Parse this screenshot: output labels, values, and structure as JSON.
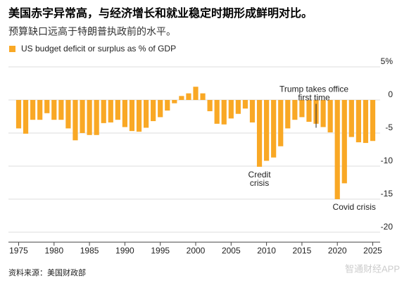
{
  "chart_data": {
    "type": "bar",
    "title": "美国赤字异常高，与经济增长和就业稳定时期形成鲜明对比。",
    "subtitle": "预算缺口远高于特朗普执政前的水平。",
    "source": "资料来源：美国财政部",
    "watermark": "智通财经APP",
    "x": [
      1975,
      1976,
      1977,
      1978,
      1979,
      1980,
      1981,
      1982,
      1983,
      1984,
      1985,
      1986,
      1987,
      1988,
      1989,
      1990,
      1991,
      1992,
      1993,
      1994,
      1995,
      1996,
      1997,
      1998,
      1999,
      2000,
      2001,
      2002,
      2003,
      2004,
      2005,
      2006,
      2007,
      2008,
      2009,
      2010,
      2011,
      2012,
      2013,
      2014,
      2015,
      2016,
      2017,
      2018,
      2019,
      2020,
      2021,
      2022,
      2023,
      2024,
      2025
    ],
    "series": [
      {
        "name": "US budget deficit or surplus as % of GDP",
        "color": "#f9a825",
        "values": [
          -4.3,
          -5.1,
          -3.0,
          -3.0,
          -2.0,
          -3.0,
          -3.0,
          -4.3,
          -6.1,
          -5.0,
          -5.3,
          -5.3,
          -3.5,
          -3.4,
          -3.0,
          -4.1,
          -4.7,
          -4.8,
          -4.2,
          -3.2,
          -2.6,
          -1.6,
          -0.5,
          0.6,
          1.0,
          2.0,
          1.0,
          -1.7,
          -3.6,
          -3.7,
          -2.8,
          -2.1,
          -1.3,
          -3.4,
          -10.1,
          -9.2,
          -8.7,
          -7.0,
          -4.3,
          -3.0,
          -2.6,
          -3.3,
          -3.6,
          -4.1,
          -4.9,
          -15.0,
          -12.6,
          -5.6,
          -6.4,
          -6.5,
          -6.2
        ]
      }
    ],
    "xlim": [
      1973.5,
      2026.5
    ],
    "xticks": [
      1975,
      1980,
      1985,
      1990,
      1995,
      2000,
      2005,
      2010,
      2015,
      2020,
      2025
    ],
    "ylim": [
      -21.5,
      5.8
    ],
    "yticks": [
      {
        "value": 5,
        "label": "5%"
      },
      0,
      -5,
      -10,
      -15,
      -20
    ],
    "grid": true,
    "annotations": [
      {
        "x": 2009,
        "y": -10.1,
        "lines": [
          "Credit",
          "crisis"
        ]
      },
      {
        "x": 2020,
        "y": -15.0,
        "lines": [
          "Covid crisis"
        ]
      },
      {
        "x": 2017,
        "y": 2.5,
        "lines": [
          "Trump takes office",
          "first time"
        ]
      }
    ]
  }
}
